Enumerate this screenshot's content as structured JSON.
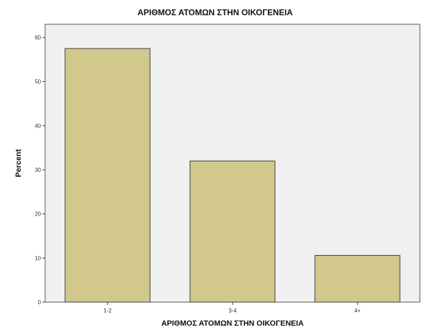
{
  "chart_data": {
    "type": "bar",
    "title": "ΑΡΙΘΜΟΣ ΑΤΟΜΩΝ ΣΤΗΝ ΟΙΚΟΓΕΝΕΙΑ",
    "xlabel": "ΑΡΙΘΜΟΣ ΑΤΟΜΩΝ ΣΤΗΝ ΟΙΚΟΓΕΝΕΙΑ",
    "ylabel": "Percent",
    "categories": [
      "1-2",
      "3-4",
      "4+"
    ],
    "values": [
      57.5,
      32.0,
      10.6
    ],
    "ylim": [
      0,
      63
    ],
    "yticks": [
      0,
      10,
      20,
      30,
      40,
      50,
      60
    ],
    "grid": false,
    "legend": "none",
    "colors": {
      "bar_fill": "#d2c88c",
      "bar_stroke": "#3c3c3c",
      "plot_background": "#f0f0f0",
      "plot_border": "#555555"
    }
  }
}
